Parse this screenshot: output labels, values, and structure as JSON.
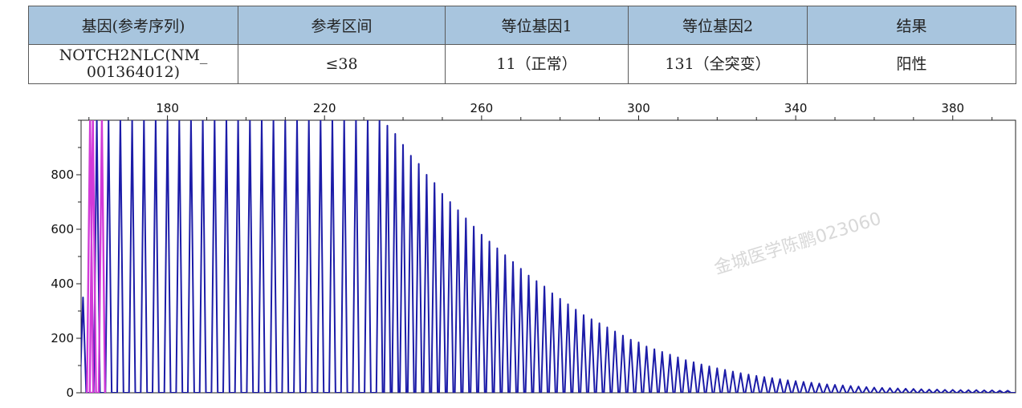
{
  "table": {
    "headers": [
      "基因(参考序列)",
      "参考区间",
      "等位基因1",
      "等位基因2",
      "结果"
    ],
    "row": {
      "gene_line1": "NOTCH2NLC(NM_",
      "gene_line2": "001364012)",
      "reference": "≤38",
      "allele1": "11（正常）",
      "allele2": "131（全突变）",
      "result": "阳性"
    }
  },
  "watermark": "金城医学陈鹏023060",
  "chart_data": {
    "type": "line",
    "title": "",
    "xlabel": "",
    "ylabel": "",
    "xlim": [
      158,
      396
    ],
    "ylim": [
      0,
      1000
    ],
    "x_ticks": [
      180,
      220,
      260,
      300,
      340,
      380
    ],
    "y_ticks": [
      0,
      200,
      400,
      600,
      800
    ],
    "grid": false,
    "legend": "none",
    "series": [
      {
        "color": "#1c1ca8",
        "peak_spacing": 3,
        "peaks": [
          [
            158.5,
            350
          ],
          [
            162,
            1000
          ],
          [
            165,
            1000
          ],
          [
            168,
            1000
          ],
          [
            171,
            1000
          ],
          [
            174,
            1000
          ],
          [
            177,
            1000
          ],
          [
            180,
            1000
          ],
          [
            183,
            1000
          ],
          [
            186,
            1000
          ],
          [
            189,
            1000
          ],
          [
            192,
            1000
          ],
          [
            195,
            1000
          ],
          [
            198,
            1000
          ],
          [
            201,
            1000
          ],
          [
            204,
            1000
          ],
          [
            207,
            1000
          ],
          [
            210,
            1000
          ],
          [
            213,
            1000
          ],
          [
            216,
            1000
          ],
          [
            219,
            1000
          ],
          [
            222,
            1000
          ],
          [
            225,
            1000
          ],
          [
            228,
            1000
          ],
          [
            231,
            1000
          ],
          [
            234,
            1000
          ],
          [
            236,
            980
          ],
          [
            238,
            950
          ],
          [
            240,
            910
          ],
          [
            242,
            870
          ],
          [
            244,
            840
          ],
          [
            246,
            800
          ],
          [
            248,
            770
          ],
          [
            250,
            730
          ],
          [
            252,
            700
          ],
          [
            254,
            670
          ],
          [
            256,
            640
          ],
          [
            258,
            610
          ],
          [
            260,
            580
          ],
          [
            262,
            555
          ],
          [
            264,
            530
          ],
          [
            266,
            505
          ],
          [
            268,
            480
          ],
          [
            270,
            455
          ],
          [
            272,
            430
          ],
          [
            274,
            410
          ],
          [
            276,
            390
          ],
          [
            278,
            365
          ],
          [
            280,
            345
          ],
          [
            282,
            325
          ],
          [
            284,
            305
          ],
          [
            286,
            285
          ],
          [
            288,
            270
          ],
          [
            290,
            255
          ],
          [
            292,
            240
          ],
          [
            294,
            225
          ],
          [
            296,
            210
          ],
          [
            298,
            195
          ],
          [
            300,
            185
          ],
          [
            302,
            170
          ],
          [
            304,
            160
          ],
          [
            306,
            150
          ],
          [
            308,
            140
          ],
          [
            310,
            130
          ],
          [
            312,
            120
          ],
          [
            314,
            112
          ],
          [
            316,
            104
          ],
          [
            318,
            97
          ],
          [
            320,
            90
          ],
          [
            322,
            84
          ],
          [
            324,
            78
          ],
          [
            326,
            72
          ],
          [
            328,
            67
          ],
          [
            330,
            62
          ],
          [
            332,
            58
          ],
          [
            334,
            54
          ],
          [
            336,
            50
          ],
          [
            338,
            46
          ],
          [
            340,
            43
          ],
          [
            342,
            40
          ],
          [
            344,
            37
          ],
          [
            346,
            34
          ],
          [
            348,
            31
          ],
          [
            350,
            29
          ],
          [
            352,
            27
          ],
          [
            354,
            25
          ],
          [
            356,
            23
          ],
          [
            358,
            21
          ],
          [
            360,
            19
          ],
          [
            362,
            18
          ],
          [
            364,
            17
          ],
          [
            366,
            16
          ],
          [
            368,
            15
          ],
          [
            370,
            14
          ],
          [
            372,
            13
          ],
          [
            374,
            12
          ],
          [
            376,
            12
          ],
          [
            378,
            11
          ],
          [
            380,
            11
          ],
          [
            382,
            10
          ],
          [
            384,
            10
          ],
          [
            386,
            10
          ],
          [
            388,
            9
          ],
          [
            390,
            9
          ],
          [
            392,
            8
          ],
          [
            394,
            8
          ]
        ]
      },
      {
        "color": "#d23ad8",
        "peaks": [
          [
            160.3,
            1000
          ],
          [
            161,
            1000
          ],
          [
            163.3,
            1000
          ]
        ]
      }
    ]
  }
}
